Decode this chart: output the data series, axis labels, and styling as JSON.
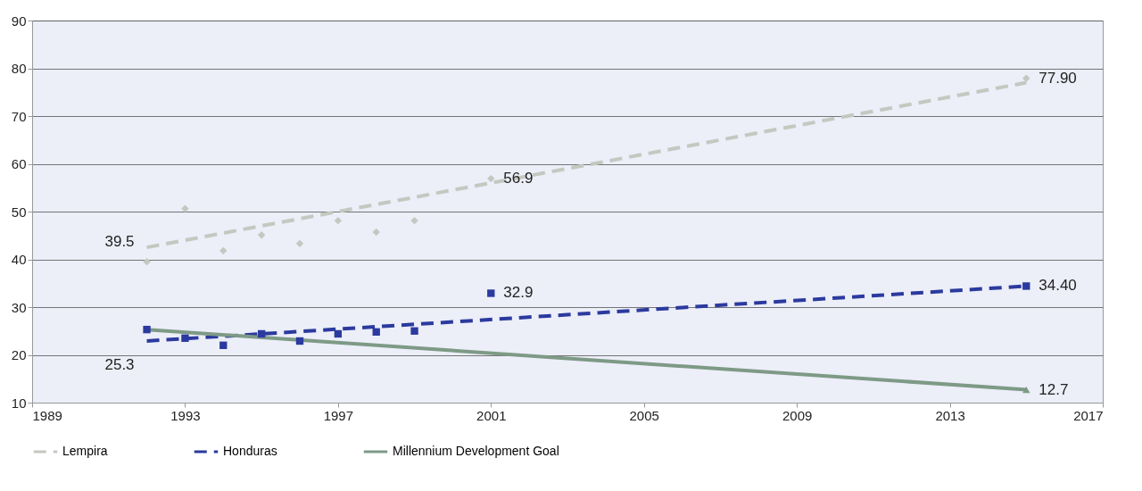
{
  "chart_data": {
    "type": "line",
    "xlim": [
      1989,
      2017
    ],
    "xticks": [
      1989,
      1993,
      1997,
      2001,
      2005,
      2009,
      2013,
      2017
    ],
    "ylim": [
      10,
      90
    ],
    "yticks": [
      10,
      20,
      30,
      40,
      50,
      60,
      70,
      80,
      90
    ],
    "grid": "y",
    "legend": "bottom",
    "series": [
      {
        "name": "Lempira",
        "color": "#c4c8c0",
        "line_style": "dashed",
        "x": [
          1992,
          2015
        ],
        "values": [
          42.5,
          77.0
        ]
      },
      {
        "type": "scatter",
        "color": "#c4c8c0",
        "marker": "diamond",
        "x": [
          1992,
          1993,
          1994,
          1995,
          1996,
          1997,
          1998,
          1999,
          2001,
          2015
        ],
        "values": [
          39.5,
          50.6,
          41.8,
          45.1,
          43.3,
          48.1,
          45.7,
          48.1,
          56.9,
          77.9
        ],
        "value_labels": [
          "39.5",
          null,
          null,
          null,
          null,
          null,
          null,
          null,
          "56.9",
          "77.90"
        ]
      },
      {
        "name": "Honduras",
        "color": "#2b3a9e",
        "line_style": "dashed",
        "x": [
          1992,
          2015
        ],
        "values": [
          22.9,
          34.4
        ]
      },
      {
        "type": "scatter",
        "color": "#2b3a9e",
        "marker": "square",
        "x": [
          1992,
          1993,
          1994,
          1995,
          1996,
          1997,
          1998,
          1999,
          2001,
          2015
        ],
        "values": [
          25.3,
          23.5,
          22.0,
          24.4,
          22.9,
          24.4,
          24.8,
          25.0,
          32.9,
          34.4
        ],
        "value_labels": [
          null,
          null,
          null,
          null,
          null,
          null,
          null,
          null,
          "32.9",
          "34.40"
        ]
      },
      {
        "name": "Millennium Development Goal",
        "color": "#7e9a86",
        "line_style": "solid",
        "x": [
          1992,
          2015
        ],
        "values": [
          25.3,
          12.7
        ],
        "value_labels": [
          "25.3",
          "12.7"
        ]
      },
      {
        "type": "scatter",
        "color": "#7e9a86",
        "marker": "triangle",
        "x": [
          2015
        ],
        "values": [
          12.7
        ]
      }
    ]
  }
}
